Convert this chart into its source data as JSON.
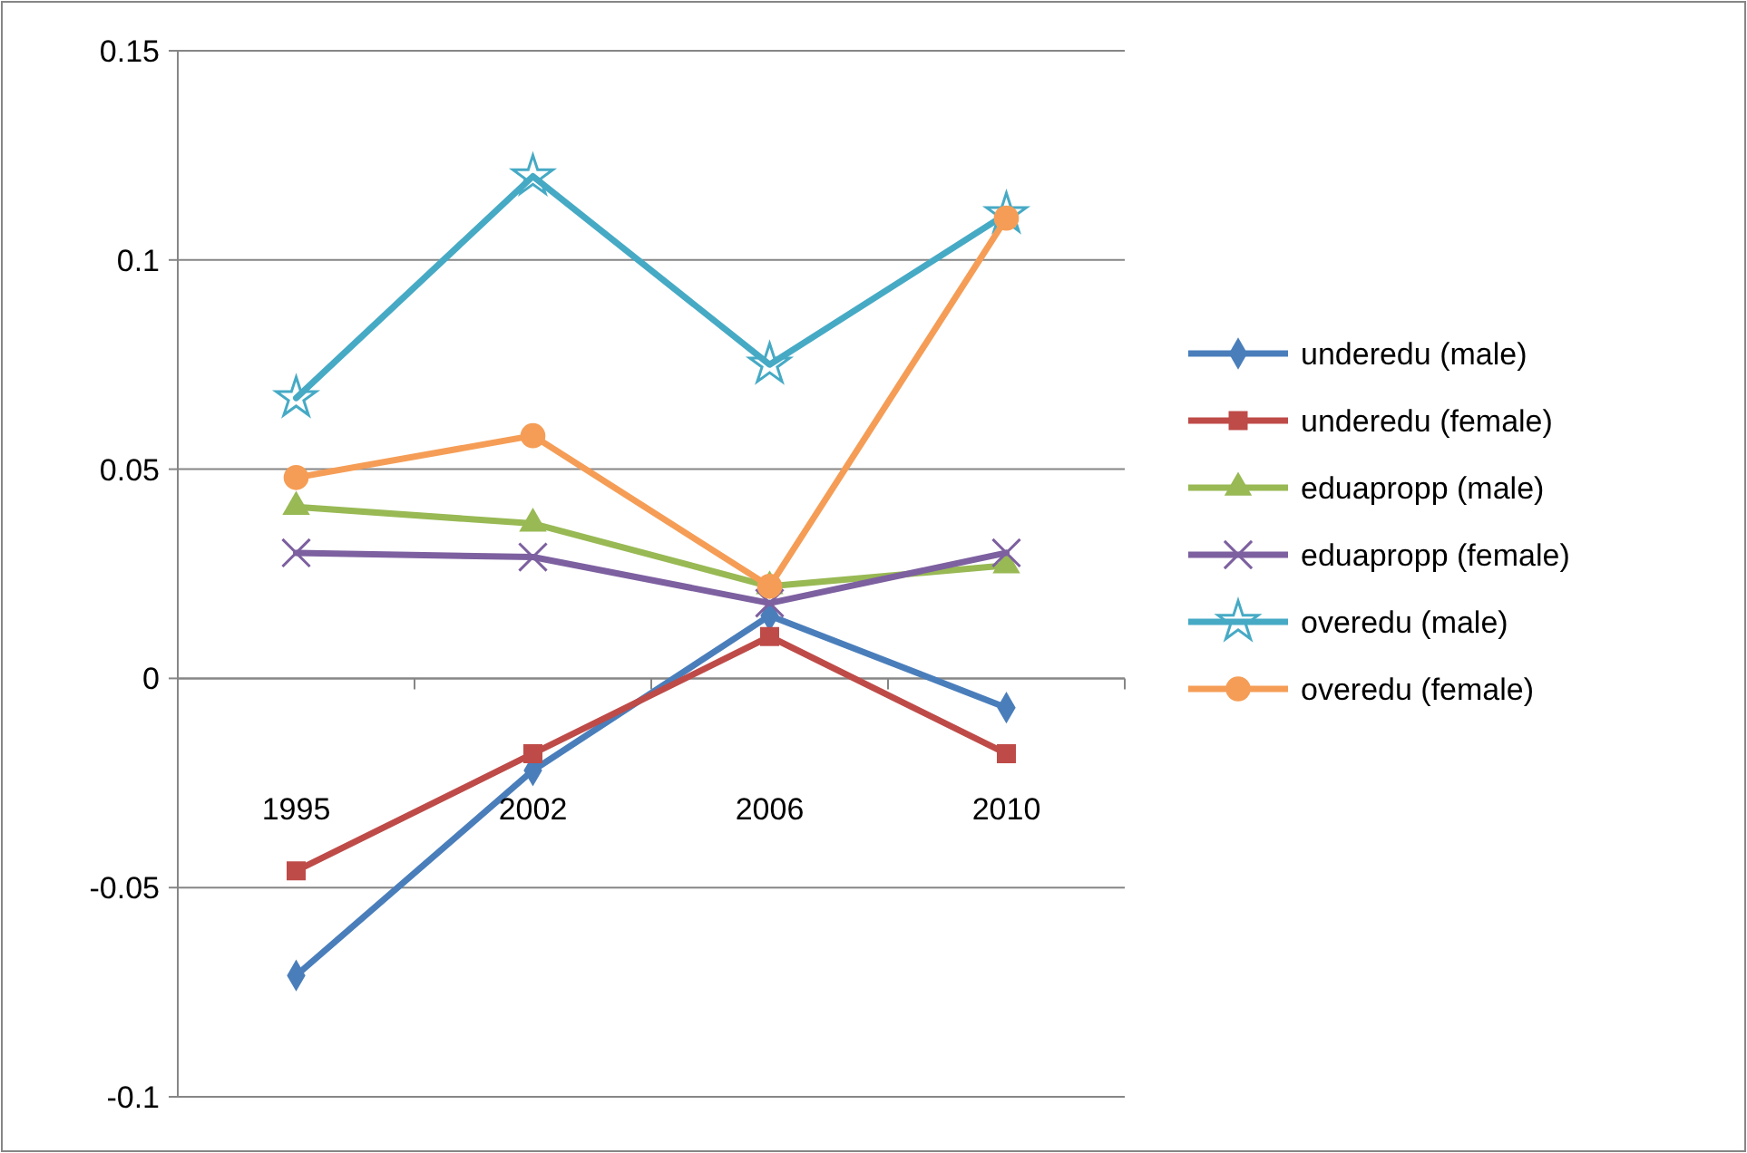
{
  "chart_data": {
    "type": "line",
    "categories": [
      "1995",
      "2002",
      "2006",
      "2010"
    ],
    "ylim": [
      -0.1,
      0.15
    ],
    "yticks": [
      -0.1,
      -0.05,
      0,
      0.05,
      0.1,
      0.15
    ],
    "grid": "y",
    "legend": "right",
    "series": [
      {
        "name": "underedu (male)",
        "color": "#4a7ebb",
        "marker": "diamond",
        "values": [
          -0.071,
          -0.022,
          0.015,
          -0.007
        ]
      },
      {
        "name": "underedu (female)",
        "color": "#be4b48",
        "marker": "square",
        "values": [
          -0.046,
          -0.018,
          0.01,
          -0.018
        ]
      },
      {
        "name": "eduapropp (male)",
        "color": "#98b954",
        "marker": "triangle",
        "values": [
          0.041,
          0.037,
          0.022,
          0.027
        ]
      },
      {
        "name": "eduapropp (female)",
        "color": "#7d60a0",
        "marker": "cross",
        "values": [
          0.03,
          0.029,
          0.018,
          0.03
        ]
      },
      {
        "name": "overedu (male)",
        "color": "#46aac5",
        "marker": "star",
        "values": [
          0.067,
          0.12,
          0.075,
          0.111
        ]
      },
      {
        "name": "overedu (female)",
        "color": "#f59d56",
        "marker": "circle",
        "values": [
          0.048,
          0.058,
          0.022,
          0.11
        ]
      }
    ]
  }
}
